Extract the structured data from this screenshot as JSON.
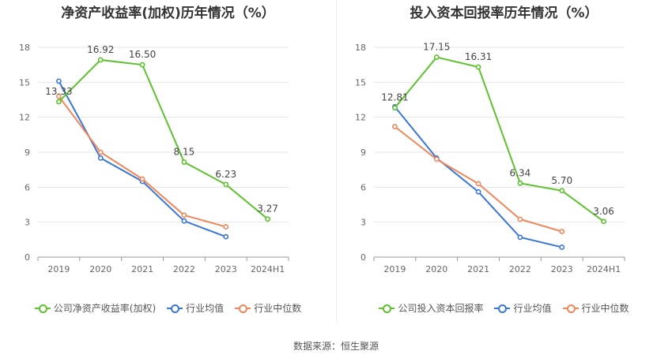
{
  "source": "数据来源：恒生聚源",
  "chart_data": [
    {
      "type": "line",
      "title": "净资产收益率(加权)历年情况（%）",
      "categories": [
        "2019",
        "2020",
        "2021",
        "2022",
        "2023",
        "2024H1"
      ],
      "ylim": [
        0,
        18
      ],
      "yticks": [
        0,
        3,
        6,
        9,
        12,
        15,
        18
      ],
      "grid": true,
      "legend_position": "bottom",
      "series": [
        {
          "name": "公司净资产收益率(加权)",
          "color": "#5cc22e",
          "values": [
            13.33,
            16.92,
            16.5,
            8.15,
            6.23,
            3.27
          ],
          "labels": [
            "13.33",
            "16.92",
            "16.50",
            "8.15",
            "6.23",
            "3.27"
          ]
        },
        {
          "name": "行业均值",
          "color": "#3a76d8",
          "values": [
            15.1,
            8.5,
            6.5,
            3.1,
            1.75,
            null
          ]
        },
        {
          "name": "行业中位数",
          "color": "#f0875a",
          "values": [
            13.8,
            9.0,
            6.7,
            3.6,
            2.6,
            null
          ]
        }
      ]
    },
    {
      "type": "line",
      "title": "投入资本回报率历年情况（%）",
      "categories": [
        "2019",
        "2020",
        "2021",
        "2022",
        "2023",
        "2024H1"
      ],
      "ylim": [
        0,
        18
      ],
      "yticks": [
        0,
        3,
        6,
        9,
        12,
        15,
        18
      ],
      "grid": true,
      "legend_position": "bottom",
      "series": [
        {
          "name": "公司投入资本回报率",
          "color": "#5cc22e",
          "values": [
            12.81,
            17.15,
            16.31,
            6.34,
            5.7,
            3.06
          ],
          "labels": [
            "12.81",
            "17.15",
            "16.31",
            "6.34",
            "5.70",
            "3.06"
          ]
        },
        {
          "name": "行业均值",
          "color": "#3a76d8",
          "values": [
            12.9,
            8.5,
            5.6,
            1.7,
            0.85,
            null
          ]
        },
        {
          "name": "行业中位数",
          "color": "#f0875a",
          "values": [
            11.2,
            8.4,
            6.3,
            3.25,
            2.2,
            null
          ]
        }
      ]
    }
  ]
}
